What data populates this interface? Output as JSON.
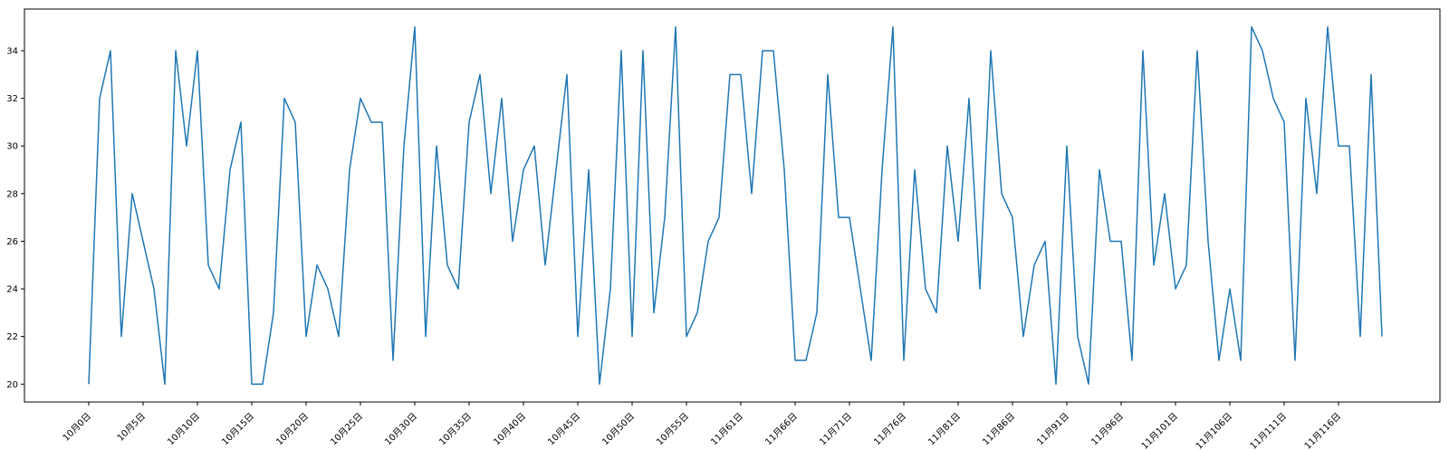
{
  "chart_data": {
    "type": "line",
    "title": "",
    "xlabel": "",
    "ylabel": "",
    "grid": false,
    "legend": "none",
    "ylim": [
      19.25,
      35.75
    ],
    "line_color": "#1f77b4",
    "y_ticks": [
      20,
      22,
      24,
      26,
      28,
      30,
      32,
      34
    ],
    "x_tick_labels": [
      "10月0日",
      "10月5日",
      "10月10日",
      "10月15日",
      "10月20日",
      "10月25日",
      "10月30日",
      "10月35日",
      "10月40日",
      "10月45日",
      "10月50日",
      "10月55日",
      "11月61日",
      "11月66日",
      "11月71日",
      "11月76日",
      "11月81日",
      "11月86日",
      "11月91日",
      "11月96日",
      "11月101日",
      "11月106日",
      "11月111日",
      "11月116日"
    ],
    "series": [
      {
        "values": [
          20,
          32,
          34,
          22,
          28,
          26,
          24,
          20,
          34,
          30,
          34,
          25,
          24,
          29,
          31,
          20,
          20,
          23,
          32,
          31,
          22,
          25,
          24,
          22,
          29,
          32,
          31,
          31,
          21,
          30,
          35,
          22,
          30,
          25,
          24,
          31,
          33,
          28,
          32,
          26,
          29,
          30,
          25,
          29,
          33,
          22,
          29,
          20,
          24,
          34,
          22,
          34,
          23,
          27,
          35,
          22,
          23,
          26,
          27,
          33,
          33,
          28,
          34,
          34,
          29,
          21,
          21,
          23,
          33,
          27,
          27,
          24,
          21,
          29,
          35,
          21,
          29,
          24,
          23,
          30,
          26,
          32,
          24,
          34,
          28,
          27,
          22,
          25,
          26,
          20,
          30,
          22,
          20,
          29,
          26,
          26,
          21,
          34,
          25,
          28,
          24,
          25,
          34,
          26,
          21,
          24,
          21,
          35,
          34,
          32,
          31,
          21,
          32,
          28,
          35,
          30,
          30,
          22,
          33,
          22
        ]
      }
    ]
  }
}
